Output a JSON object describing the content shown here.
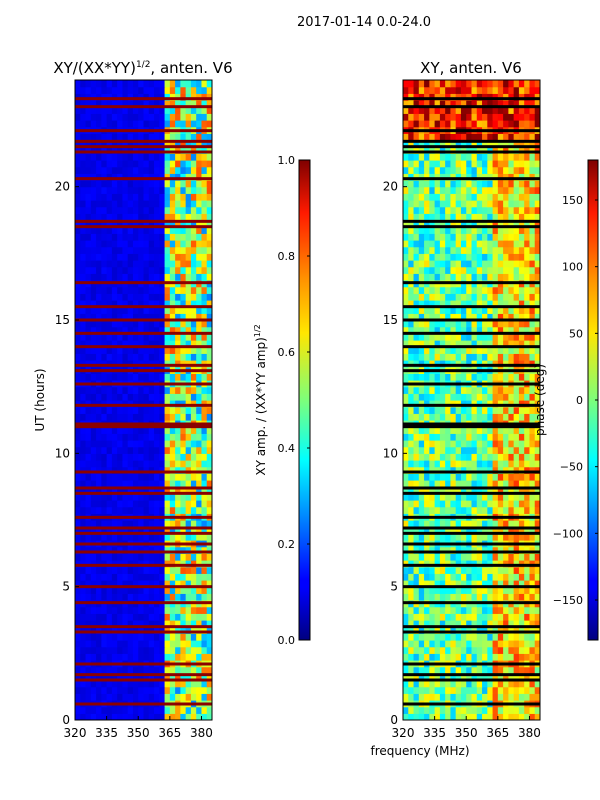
{
  "suptitle": "2017-01-14 0.0-24.0",
  "xlabel_shared": "frequency (MHz)",
  "chart_data": [
    {
      "type": "heatmap",
      "title_main": "XY/(XX*YY)",
      "title_sup": "1/2",
      "title_suffix": ", anten. V6",
      "ylabel": "UT (hours)",
      "xlim": [
        320,
        385
      ],
      "ylim": [
        0,
        24
      ],
      "xticks": [
        "320",
        "335",
        "350",
        "365",
        "380"
      ],
      "xtick_values": [
        320,
        335,
        350,
        365,
        380
      ],
      "yticks": [
        "0",
        "5",
        "10",
        "15",
        "20"
      ],
      "ytick_values": [
        0,
        5,
        10,
        15,
        20
      ],
      "colorbar": {
        "label_main": "XY amp. / (XX*YY amp)",
        "label_sup": "1/2",
        "range": [
          0.0,
          1.0
        ],
        "ticks": [
          "0.0",
          "0.2",
          "0.4",
          "0.6",
          "0.8",
          "1.0"
        ],
        "tick_values": [
          0.0,
          0.2,
          0.4,
          0.6,
          0.8,
          1.0
        ],
        "colormap": "jet"
      },
      "flagged_rows_ut": [
        0.6,
        1.5,
        1.7,
        2.1,
        3.3,
        3.5,
        4.4,
        5.0,
        5.8,
        6.3,
        6.6,
        7.0,
        7.2,
        7.6,
        8.5,
        8.7,
        9.3,
        11.0,
        11.1,
        11.8,
        12.6,
        13.1,
        13.3,
        14.0,
        14.5,
        15.0,
        15.5,
        16.4,
        18.5,
        18.7,
        20.3,
        21.3,
        21.5,
        21.7,
        22.1,
        23.0,
        23.3
      ]
    },
    {
      "type": "heatmap",
      "title": "XY, anten. V6",
      "xlim": [
        320,
        385
      ],
      "ylim": [
        0,
        24
      ],
      "xticks": [
        "320",
        "335",
        "350",
        "365",
        "380"
      ],
      "xtick_values": [
        320,
        335,
        350,
        365,
        380
      ],
      "yticks": [
        "0",
        "5",
        "10",
        "15",
        "20"
      ],
      "ytick_values": [
        0,
        5,
        10,
        15,
        20
      ],
      "colorbar": {
        "label": "phase (deg)",
        "range": [
          -180,
          180
        ],
        "ticks": [
          "−150",
          "−100",
          "−50",
          "0",
          "50",
          "100",
          "150"
        ],
        "tick_values": [
          -150,
          -100,
          -50,
          0,
          50,
          100,
          150
        ],
        "colormap": "jet"
      },
      "flagged_rows_ut": [
        0.6,
        1.5,
        1.7,
        2.1,
        3.3,
        3.5,
        4.4,
        5.0,
        5.8,
        6.3,
        6.6,
        7.0,
        7.2,
        7.6,
        8.5,
        8.7,
        9.3,
        11.0,
        11.1,
        11.8,
        12.6,
        13.1,
        13.3,
        14.0,
        14.5,
        15.0,
        15.5,
        16.4,
        18.5,
        18.7,
        20.3,
        21.3,
        21.5,
        21.7,
        22.1,
        23.0,
        23.3
      ]
    }
  ]
}
